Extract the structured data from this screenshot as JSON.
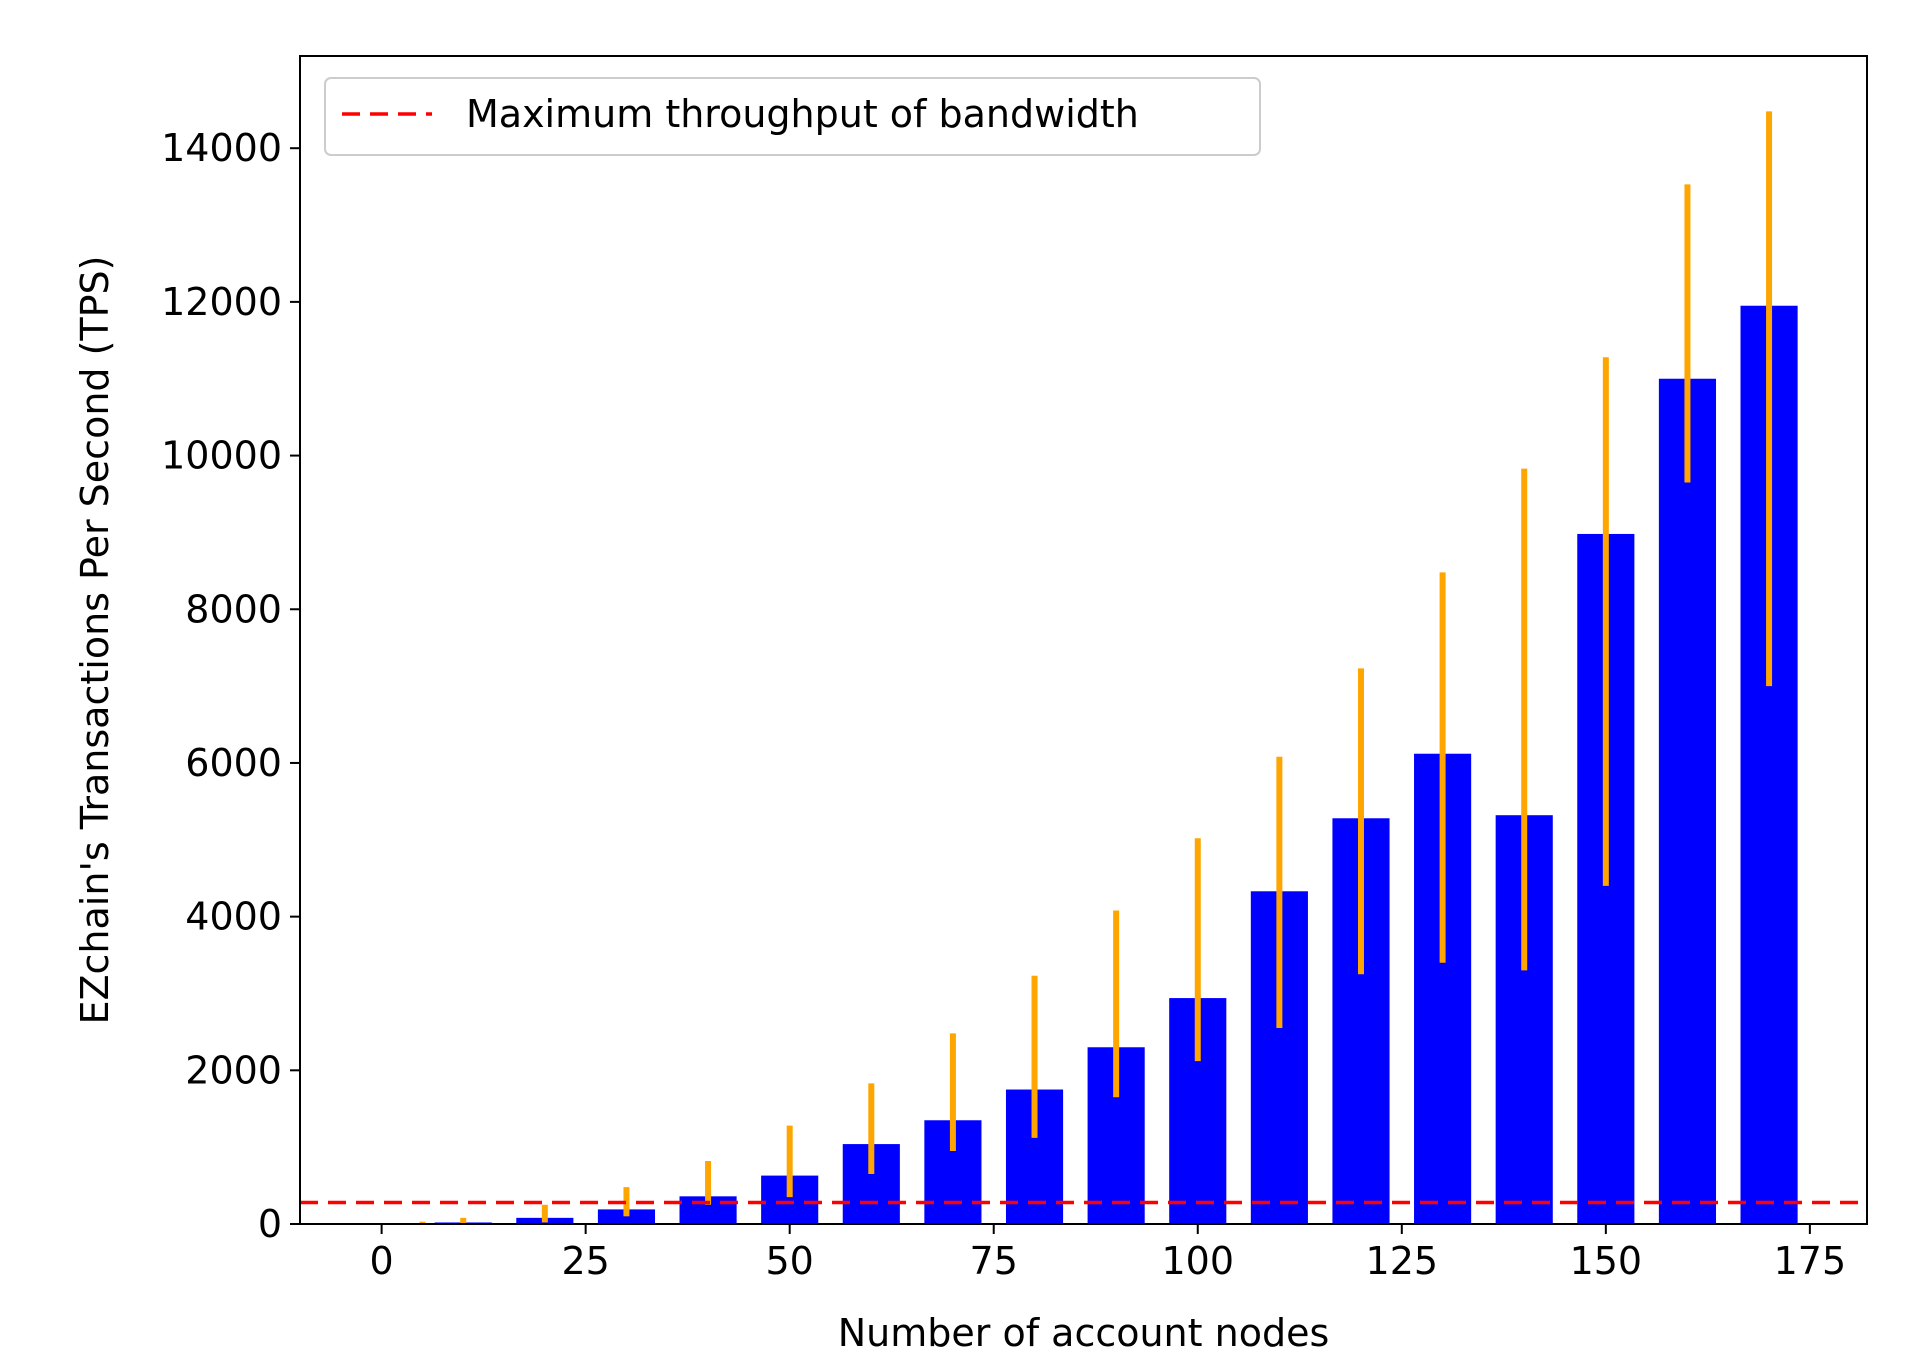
{
  "chart_data": {
    "type": "bar",
    "title": "",
    "xlabel": "Number of account nodes",
    "ylabel": "EZchain's Transactions Per Second (TPS)",
    "xlim": [
      -10,
      182
    ],
    "ylim": [
      0,
      15200
    ],
    "xticks": [
      0,
      25,
      50,
      75,
      100,
      125,
      150,
      175
    ],
    "yticks": [
      0,
      2000,
      4000,
      6000,
      8000,
      10000,
      12000,
      14000
    ],
    "grid": false,
    "legend_position": "top-left",
    "legend_label": "Maximum throughput of bandwidth",
    "reference_line": {
      "value": 280,
      "color": "#ff0000",
      "style": "dashed"
    },
    "bar_width": 7,
    "bar_color": "#0000ff",
    "error_color": "#ffa500",
    "x": [
      5,
      10,
      20,
      30,
      40,
      50,
      60,
      70,
      80,
      90,
      100,
      110,
      120,
      130,
      140,
      150,
      160,
      170
    ],
    "values": [
      10,
      20,
      80,
      190,
      360,
      630,
      1040,
      1350,
      1750,
      2300,
      2940,
      4330,
      5280,
      6120,
      5320,
      8980,
      11000,
      11950
    ],
    "error_lower": [
      0,
      0,
      20,
      100,
      250,
      350,
      650,
      950,
      1120,
      1650,
      2120,
      2550,
      3250,
      3400,
      3300,
      4400,
      9650,
      7000
    ],
    "error_upper": [
      30,
      80,
      250,
      480,
      820,
      1280,
      1830,
      2480,
      3230,
      4080,
      5020,
      6080,
      7230,
      8480,
      9830,
      11280,
      13530,
      14480
    ]
  }
}
